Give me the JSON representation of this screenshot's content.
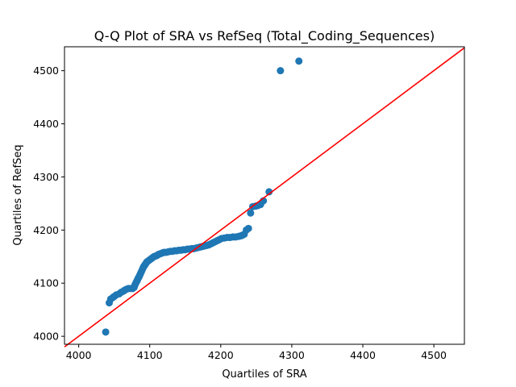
{
  "chart_data": {
    "type": "scatter",
    "title": "Q-Q Plot of SRA vs RefSeq (Total_Coding_Sequences)",
    "xlabel": "Quartiles of SRA",
    "ylabel": "Quartiles of RefSeq",
    "xlim": [
      3980,
      4543
    ],
    "ylim": [
      3985,
      4545
    ],
    "x_ticks": [
      4000,
      4100,
      4200,
      4300,
      4400,
      4500
    ],
    "y_ticks": [
      4000,
      4100,
      4200,
      4300,
      4400,
      4500
    ],
    "grid": false,
    "point_color": "#1f77b4",
    "reference_line": {
      "color": "#ff0000",
      "from": [
        3980,
        3980
      ],
      "to": [
        4543,
        4543
      ]
    },
    "x": [
      4038,
      4043,
      4045,
      4048,
      4050,
      4053,
      4057,
      4060,
      4063,
      4065,
      4068,
      4070,
      4073,
      4076,
      4078,
      4079,
      4080,
      4081,
      4082,
      4083,
      4084,
      4085,
      4086,
      4087,
      4088,
      4089,
      4090,
      4091,
      4092,
      4093,
      4094,
      4095,
      4096,
      4098,
      4100,
      4102,
      4104,
      4106,
      4108,
      4110,
      4112,
      4114,
      4116,
      4118,
      4120,
      4123,
      4126,
      4129,
      4132,
      4135,
      4138,
      4141,
      4144,
      4147,
      4150,
      4153,
      4156,
      4159,
      4162,
      4165,
      4168,
      4171,
      4174,
      4177,
      4180,
      4183,
      4186,
      4189,
      4192,
      4195,
      4198,
      4201,
      4205,
      4209,
      4213,
      4217,
      4221,
      4225,
      4228,
      4230,
      4233,
      4236,
      4239,
      4242,
      4245,
      4249,
      4252,
      4256,
      4260,
      4268,
      4284,
      4310
    ],
    "y": [
      4008,
      4063,
      4070,
      4073,
      4075,
      4078,
      4080,
      4083,
      4085,
      4087,
      4089,
      4090,
      4090,
      4090,
      4092,
      4096,
      4099,
      4102,
      4104,
      4107,
      4110,
      4112,
      4115,
      4118,
      4121,
      4124,
      4127,
      4130,
      4132,
      4134,
      4136,
      4138,
      4140,
      4142,
      4144,
      4146,
      4148,
      4150,
      4151,
      4152,
      4154,
      4155,
      4156,
      4157,
      4158,
      4158,
      4159,
      4160,
      4160,
      4161,
      4161,
      4162,
      4162,
      4163,
      4163,
      4164,
      4164,
      4165,
      4165,
      4166,
      4167,
      4168,
      4169,
      4170,
      4171,
      4172,
      4174,
      4176,
      4178,
      4180,
      4182,
      4184,
      4185,
      4186,
      4186,
      4187,
      4187,
      4188,
      4189,
      4190,
      4192,
      4200,
      4203,
      4232,
      4244,
      4245,
      4246,
      4248,
      4255,
      4272,
      4500,
      4518
    ]
  }
}
